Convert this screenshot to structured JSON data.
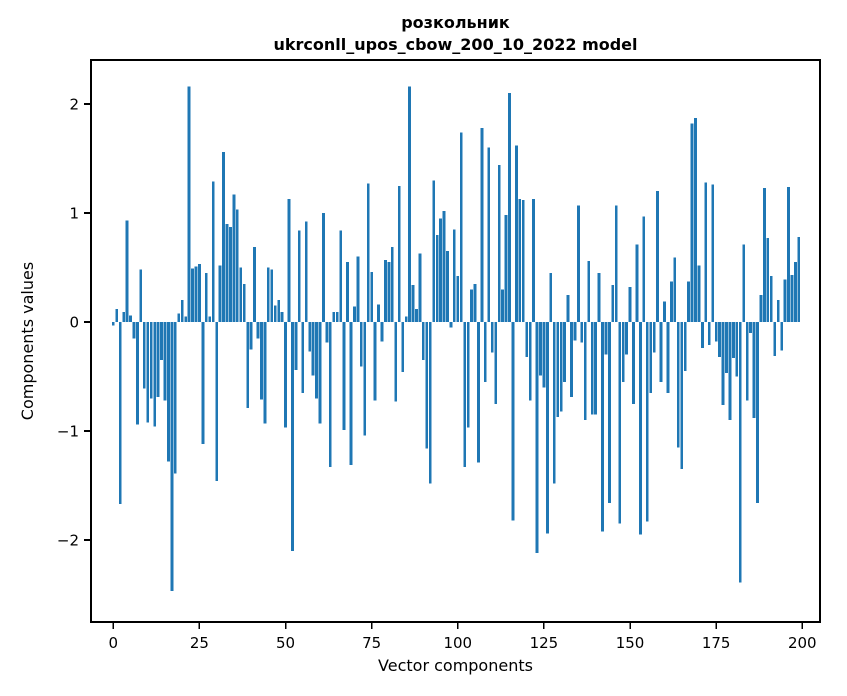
{
  "figure": {
    "title_line1": "розкольник",
    "title_line2": "ukrconll_upos_cbow_200_10_2022 model",
    "xlabel": "Vector components",
    "ylabel": "Components values"
  },
  "chart_data": {
    "type": "bar",
    "title": "розкольник — ukrconll_upos_cbow_200_10_2022 model",
    "xlabel": "Vector components",
    "ylabel": "Components values",
    "x_start": 0,
    "n_bars": 200,
    "bar_color": "#1f77b4",
    "spine_color": "#000000",
    "background_color": "#ffffff",
    "grid": false,
    "legend": null,
    "xticks": [
      0,
      25,
      50,
      75,
      100,
      125,
      150,
      175,
      200
    ],
    "yticks": [
      -2,
      -1,
      0,
      1,
      2
    ],
    "xlim": [
      -6.5,
      205.1
    ],
    "ylim": [
      -2.75,
      2.4
    ],
    "values": [
      -0.03,
      0.12,
      -1.67,
      0.09,
      0.93,
      0.06,
      -0.15,
      -0.94,
      0.48,
      -0.61,
      -0.92,
      -0.7,
      -0.96,
      -0.69,
      -0.35,
      -0.72,
      -1.28,
      -2.47,
      -1.39,
      0.08,
      0.2,
      0.05,
      2.16,
      0.49,
      0.51,
      0.53,
      -1.12,
      0.45,
      0.05,
      1.29,
      -1.46,
      0.52,
      1.56,
      0.9,
      0.87,
      1.17,
      1.03,
      0.5,
      0.35,
      -0.79,
      -0.25,
      0.69,
      -0.15,
      -0.71,
      -0.93,
      0.5,
      0.48,
      0.15,
      0.2,
      0.09,
      -0.97,
      1.13,
      -2.1,
      -0.44,
      0.84,
      -0.65,
      0.92,
      -0.27,
      -0.49,
      -0.7,
      -0.93,
      1.0,
      -0.19,
      -1.33,
      0.09,
      0.09,
      0.84,
      -0.99,
      0.55,
      -1.31,
      0.14,
      0.6,
      -0.41,
      -1.04,
      1.27,
      0.46,
      -0.72,
      0.16,
      -0.18,
      0.57,
      0.55,
      0.69,
      -0.73,
      1.25,
      -0.46,
      0.05,
      2.16,
      0.34,
      0.12,
      0.63,
      -0.35,
      -1.16,
      -1.48,
      1.3,
      0.8,
      0.95,
      1.02,
      0.65,
      -0.05,
      0.85,
      0.42,
      1.74,
      -1.33,
      -0.97,
      0.3,
      0.35,
      -1.29,
      1.78,
      -0.55,
      1.6,
      -0.28,
      -0.75,
      1.44,
      0.3,
      0.98,
      2.1,
      -1.82,
      1.62,
      1.13,
      1.12,
      -0.32,
      -0.72,
      1.13,
      -2.12,
      -0.49,
      -0.6,
      -1.94,
      0.45,
      -1.48,
      -0.87,
      -0.82,
      -0.55,
      0.25,
      -0.69,
      -0.17,
      1.07,
      -0.19,
      -0.9,
      0.56,
      -0.85,
      -0.85,
      0.45,
      -1.92,
      -0.3,
      -1.66,
      0.34,
      1.07,
      -1.85,
      -0.55,
      -0.3,
      0.32,
      -0.75,
      0.71,
      -1.95,
      0.97,
      -1.83,
      -0.65,
      -0.28,
      1.2,
      -0.55,
      0.19,
      -0.65,
      0.37,
      0.59,
      -1.15,
      -1.35,
      -0.45,
      0.37,
      1.82,
      1.87,
      0.52,
      -0.24,
      1.28,
      -0.21,
      1.26,
      -0.18,
      -0.32,
      -0.76,
      -0.47,
      -0.9,
      -0.33,
      -0.5,
      -2.39,
      0.71,
      -0.72,
      -0.1,
      -0.88,
      -1.66,
      0.25,
      1.23,
      0.77,
      0.42,
      -0.31,
      0.2,
      -0.26,
      0.39,
      1.24,
      0.43,
      0.55,
      0.78
    ]
  }
}
